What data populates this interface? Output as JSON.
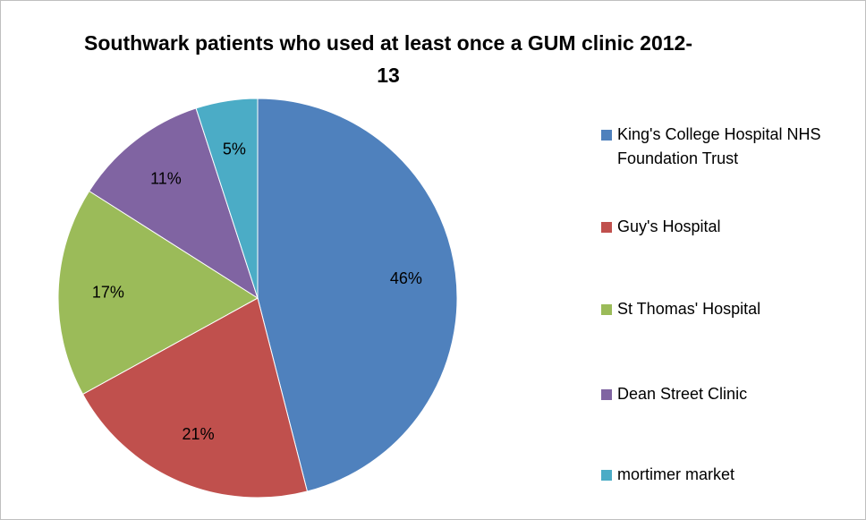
{
  "chart_data": {
    "type": "pie",
    "title": "Southwark patients who used at least once a GUM clinic 2012-13",
    "categories": [
      "King's College Hospital NHS Foundation Trust",
      "Guy's Hospital",
      "St Thomas' Hospital",
      "Dean Street Clinic",
      "mortimer market"
    ],
    "values": [
      46,
      21,
      17,
      11,
      5
    ],
    "value_labels": [
      "46%",
      "21%",
      "17%",
      "11%",
      "5%"
    ],
    "colors": [
      "#4f81bd",
      "#c0504d",
      "#9bbb59",
      "#8064a2",
      "#4bacc6"
    ],
    "legend": "right"
  }
}
